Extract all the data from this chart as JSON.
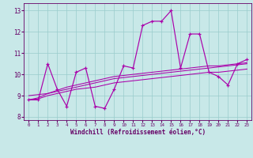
{
  "x_hours": [
    0,
    1,
    2,
    3,
    4,
    5,
    6,
    7,
    8,
    9,
    10,
    11,
    12,
    13,
    14,
    15,
    16,
    17,
    18,
    19,
    20,
    21,
    22,
    23
  ],
  "line_main": [
    8.8,
    8.8,
    10.5,
    9.3,
    8.5,
    10.1,
    10.3,
    8.5,
    8.4,
    9.3,
    10.4,
    10.3,
    12.3,
    12.5,
    12.5,
    13.0,
    10.3,
    11.9,
    11.9,
    10.1,
    9.9,
    9.5,
    10.5,
    10.7
  ],
  "trend_lines": [
    [
      8.8,
      8.85,
      9.0,
      9.1,
      9.2,
      9.3,
      9.35,
      9.4,
      9.5,
      9.6,
      9.65,
      9.7,
      9.75,
      9.8,
      9.85,
      9.9,
      9.95,
      10.0,
      10.05,
      10.1,
      10.1,
      10.15,
      10.2,
      10.25
    ],
    [
      8.8,
      8.9,
      9.1,
      9.25,
      9.4,
      9.5,
      9.6,
      9.7,
      9.8,
      9.9,
      9.95,
      10.0,
      10.05,
      10.1,
      10.15,
      10.2,
      10.25,
      10.3,
      10.35,
      10.4,
      10.4,
      10.45,
      10.5,
      10.55
    ],
    [
      9.0,
      9.05,
      9.1,
      9.2,
      9.3,
      9.4,
      9.5,
      9.6,
      9.7,
      9.8,
      9.85,
      9.9,
      9.95,
      10.0,
      10.05,
      10.1,
      10.15,
      10.2,
      10.25,
      10.3,
      10.35,
      10.4,
      10.45,
      10.5
    ]
  ],
  "line_color": "#aa00aa",
  "bg_color": "#c8e8e8",
  "grid_color": "#99cccc",
  "ylim": [
    7.85,
    13.35
  ],
  "xlim": [
    -0.5,
    23.5
  ],
  "yticks": [
    8,
    9,
    10,
    11,
    12,
    13
  ],
  "xticks": [
    0,
    1,
    2,
    3,
    4,
    5,
    6,
    7,
    8,
    9,
    10,
    11,
    12,
    13,
    14,
    15,
    16,
    17,
    18,
    19,
    20,
    21,
    22,
    23
  ],
  "xlabel": "Windchill (Refroidissement éolien,°C)",
  "tick_color": "#660066",
  "label_color": "#660066",
  "spine_color": "#660066"
}
